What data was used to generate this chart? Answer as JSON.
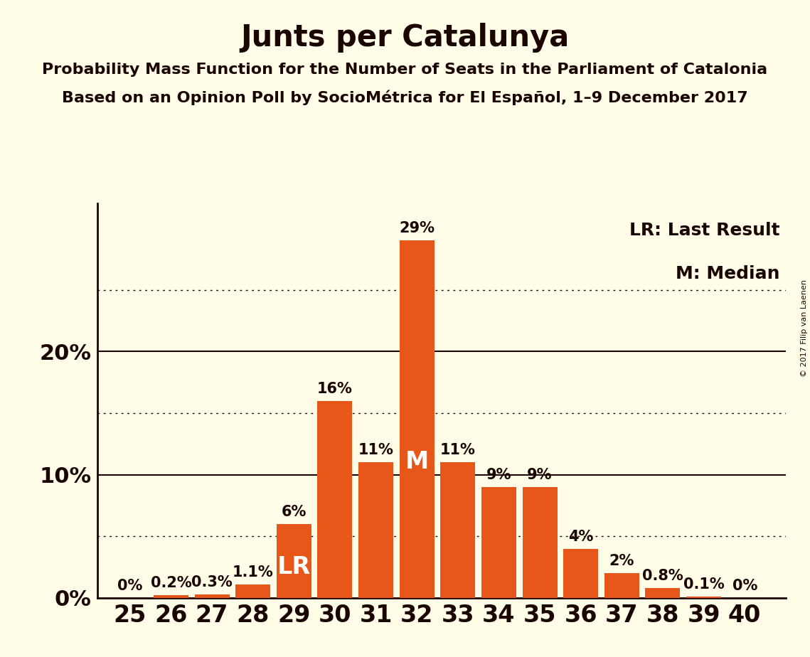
{
  "title": "Junts per Catalunya",
  "subtitle1": "Probability Mass Function for the Number of Seats in the Parliament of Catalonia",
  "subtitle2": "Based on an Opinion Poll by SocioMétrica for El Español, 1–9 December 2017",
  "copyright": "© 2017 Filip van Laenen",
  "seats": [
    25,
    26,
    27,
    28,
    29,
    30,
    31,
    32,
    33,
    34,
    35,
    36,
    37,
    38,
    39,
    40
  ],
  "probabilities": [
    0.0,
    0.2,
    0.3,
    1.1,
    6.0,
    16.0,
    11.0,
    29.0,
    11.0,
    9.0,
    9.0,
    4.0,
    2.0,
    0.8,
    0.1,
    0.0
  ],
  "bar_color": "#E8571A",
  "background_color": "#FFFDE8",
  "text_color": "#1A0500",
  "lr_seat": 29,
  "median_seat": 32,
  "yticks_solid": [
    0,
    10,
    20
  ],
  "yticks_dotted": [
    5,
    15,
    25
  ],
  "ymax": 32,
  "title_fontsize": 30,
  "subtitle_fontsize": 16,
  "ytick_fontsize": 22,
  "xtick_fontsize": 24,
  "bar_label_fontsize": 15,
  "inbar_label_fontsize": 24,
  "legend_fontsize": 18,
  "copyright_fontsize": 8
}
